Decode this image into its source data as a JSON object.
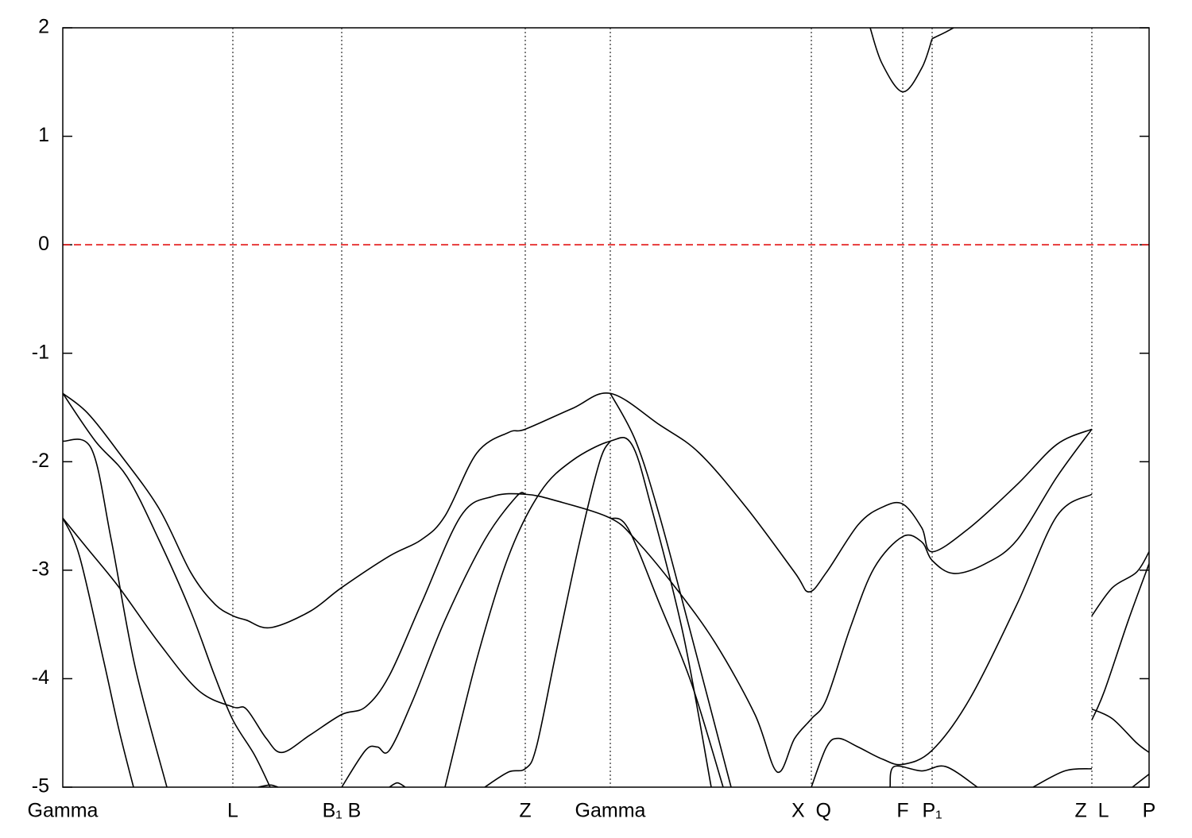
{
  "chart_data": {
    "type": "line",
    "xlim": [
      0,
      13.67
    ],
    "ylim": [
      -5,
      2
    ],
    "yticks": [
      -5,
      -4,
      -3,
      -2,
      -1,
      0,
      1,
      2
    ],
    "xticks": [
      {
        "value": 0,
        "label": "Gamma"
      },
      {
        "value": 2.14,
        "label": "L"
      },
      {
        "value": 3.51,
        "label": "B₁ B"
      },
      {
        "value": 5.82,
        "label": "Z"
      },
      {
        "value": 6.89,
        "label": "Gamma"
      },
      {
        "value": 9.42,
        "label": "X  Q"
      },
      {
        "value": 10.57,
        "label": "F"
      },
      {
        "value": 10.94,
        "label": "P₁"
      },
      {
        "value": 12.95,
        "label": "Z  L"
      },
      {
        "value": 13.67,
        "label": "P"
      }
    ],
    "reference_line": {
      "value": 0,
      "color": "#e00000"
    },
    "series": [
      {
        "color": "#000000",
        "x": [
          0,
          0.31,
          0.71,
          1.21,
          1.61,
          1.91,
          2.14,
          2.31,
          2.61,
          3.11,
          3.51,
          4.11,
          4.51,
          4.81,
          5.21,
          5.61,
          5.82,
          6.41,
          6.89,
          7.51,
          8.01,
          8.61,
          9.21,
          9.39,
          9.61,
          10.01,
          10.31,
          10.57,
          10.81,
          10.94,
          11.41,
          12.01,
          12.51,
          12.95
        ],
        "values": [
          -1.37,
          -1.55,
          -1.92,
          -2.43,
          -3.02,
          -3.31,
          -3.42,
          -3.46,
          -3.53,
          -3.38,
          -3.16,
          -2.87,
          -2.72,
          -2.5,
          -1.92,
          -1.73,
          -1.7,
          -1.51,
          -1.37,
          -1.66,
          -1.92,
          -2.43,
          -3.02,
          -3.2,
          -3.02,
          -2.58,
          -2.42,
          -2.39,
          -2.61,
          -2.83,
          -2.61,
          -2.21,
          -1.84,
          -1.7
        ]
      },
      {
        "color": "#000000",
        "x": [
          0,
          0.41,
          0.81,
          1.21,
          1.61,
          1.91,
          2.14,
          2.41,
          2.61
        ],
        "values": [
          -1.37,
          -1.81,
          -2.14,
          -2.72,
          -3.38,
          -3.97,
          -4.38,
          -4.7,
          -5.0
        ]
      },
      {
        "color": "#000000",
        "x": [
          0,
          0.36,
          0.61,
          0.91,
          1.31
        ],
        "values": [
          -1.81,
          -1.88,
          -2.72,
          -3.89,
          -5.0
        ]
      },
      {
        "color": "#000000",
        "x": [
          0,
          0.31,
          0.71,
          1.21,
          1.71,
          2.14,
          2.31,
          2.56,
          2.76,
          3.11,
          3.51,
          3.81,
          4.11,
          4.51,
          5.01,
          5.41,
          5.82,
          6.21,
          6.89,
          7.21,
          7.71,
          8.21,
          8.71,
          8.99,
          9.21,
          9.42,
          9.61,
          9.91,
          10.21,
          10.57,
          10.81,
          10.94,
          11.21,
          11.61,
          12.01,
          12.51,
          12.95
        ],
        "values": [
          -2.52,
          -2.8,
          -3.16,
          -3.67,
          -4.11,
          -4.26,
          -4.28,
          -4.55,
          -4.68,
          -4.52,
          -4.33,
          -4.26,
          -3.97,
          -3.31,
          -2.5,
          -2.32,
          -2.3,
          -2.36,
          -2.52,
          -2.72,
          -3.16,
          -3.67,
          -4.33,
          -4.86,
          -4.55,
          -4.37,
          -4.19,
          -3.53,
          -2.98,
          -2.69,
          -2.74,
          -2.91,
          -3.03,
          -2.94,
          -2.72,
          -2.14,
          -1.7
        ]
      },
      {
        "color": "#000000",
        "x": [
          0,
          0.21,
          0.51,
          0.71,
          0.89
        ],
        "values": [
          -2.52,
          -2.87,
          -3.82,
          -4.48,
          -5.0
        ]
      },
      {
        "color": "#000000",
        "x": [
          3.51,
          3.81,
          3.96,
          4.11,
          4.41,
          4.81,
          5.31,
          5.71,
          5.82
        ],
        "values": [
          -5.0,
          -4.66,
          -4.63,
          -4.66,
          -4.19,
          -3.46,
          -2.72,
          -2.32,
          -2.3
        ]
      },
      {
        "color": "#000000",
        "x": [
          4.81,
          5.21,
          5.61,
          6.01,
          6.41,
          6.89,
          7.16,
          7.41,
          7.81,
          8.16
        ],
        "values": [
          -5.0,
          -3.82,
          -2.87,
          -2.28,
          -1.99,
          -1.81,
          -1.84,
          -2.43,
          -3.6,
          -5.0
        ]
      },
      {
        "color": "#000000",
        "x": [
          5.31,
          5.61,
          5.82,
          5.96,
          6.21,
          6.51,
          6.76,
          6.89
        ],
        "values": [
          -5.0,
          -4.86,
          -4.83,
          -4.63,
          -3.75,
          -2.72,
          -1.99,
          -1.81
        ]
      },
      {
        "color": "#000000",
        "x": [
          6.89,
          7.21,
          7.51,
          7.91,
          8.41
        ],
        "values": [
          -1.37,
          -1.81,
          -2.5,
          -3.6,
          -5.0
        ]
      },
      {
        "color": "#000000",
        "x": [
          6.89,
          7.11,
          7.51,
          7.91,
          8.31
        ],
        "values": [
          -2.52,
          -2.61,
          -3.31,
          -4.04,
          -5.0
        ]
      },
      {
        "color": "#000000",
        "x": [
          9.42,
          9.61,
          9.76,
          10.01,
          10.31,
          10.57,
          10.94,
          11.41,
          12.01,
          12.51,
          12.95
        ],
        "values": [
          -5.0,
          -4.63,
          -4.55,
          -4.63,
          -4.74,
          -4.79,
          -4.66,
          -4.19,
          -3.31,
          -2.5,
          -2.3
        ]
      },
      {
        "color": "#000000",
        "x": [
          10.41,
          10.46,
          10.81,
          11.11,
          11.51
        ],
        "values": [
          -5.0,
          -4.81,
          -4.85,
          -4.81,
          -5.0
        ]
      },
      {
        "color": "#000000",
        "x": [
          12.21,
          12.61,
          12.95
        ],
        "values": [
          -5.0,
          -4.85,
          -4.83
        ]
      },
      {
        "color": "#000000",
        "x": [
          10.16,
          10.31,
          10.57,
          10.81,
          10.94
        ],
        "values": [
          2.0,
          1.67,
          1.41,
          1.63,
          1.9
        ]
      },
      {
        "color": "#000000",
        "x": [
          10.94,
          11.11,
          11.21
        ],
        "values": [
          1.9,
          1.96,
          2.0
        ]
      },
      {
        "color": "#000000",
        "x": [
          2.46,
          2.61,
          2.71
        ],
        "values": [
          -5.0,
          -4.98,
          -5.0
        ]
      },
      {
        "color": "#000000",
        "x": [
          4.11,
          4.21,
          4.31
        ],
        "values": [
          -5.0,
          -4.96,
          -5.0
        ]
      },
      {
        "color": "#000000",
        "x": [
          12.95,
          13.21,
          13.51,
          13.67
        ],
        "values": [
          -3.42,
          -3.16,
          -3.02,
          -2.83
        ]
      },
      {
        "color": "#000000",
        "x": [
          12.95,
          13.11,
          13.41,
          13.67
        ],
        "values": [
          -4.38,
          -4.11,
          -3.46,
          -2.94
        ]
      },
      {
        "color": "#000000",
        "x": [
          12.95,
          13.21,
          13.51,
          13.67
        ],
        "values": [
          -4.28,
          -4.37,
          -4.59,
          -4.68
        ]
      },
      {
        "color": "#000000",
        "x": [
          13.46,
          13.67
        ],
        "values": [
          -5.0,
          -4.88
        ]
      }
    ]
  }
}
